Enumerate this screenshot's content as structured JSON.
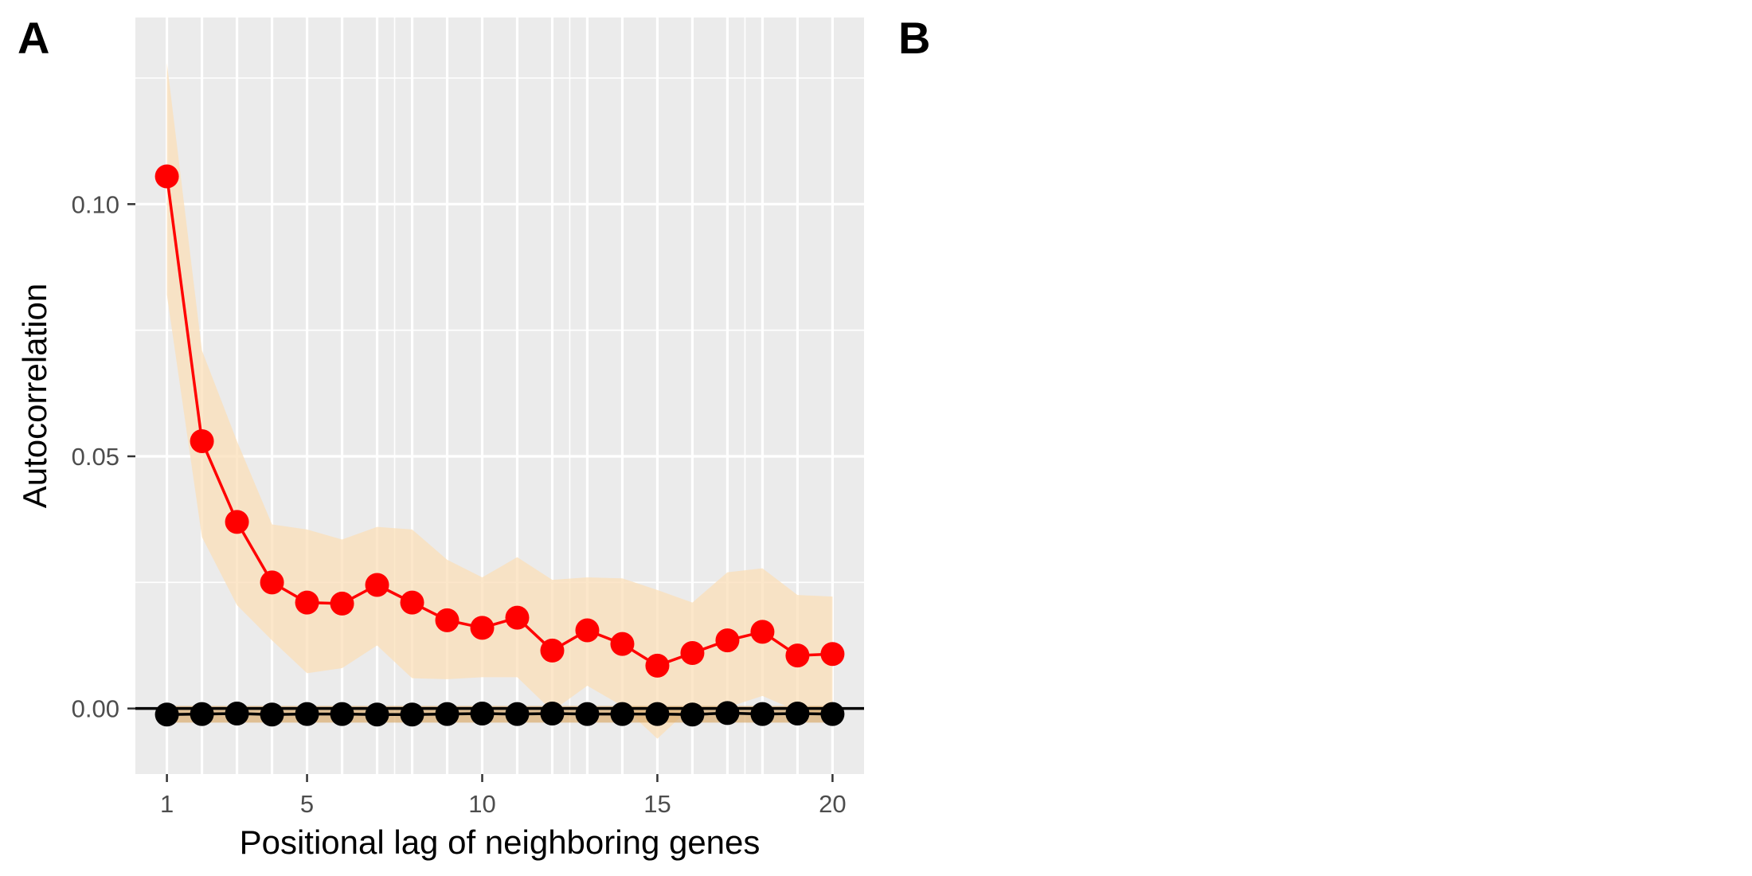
{
  "panels": [
    {
      "label": "A"
    },
    {
      "label": "B"
    }
  ],
  "chart_data": {
    "type": "line",
    "title": "",
    "xlabel": "Positional lag of neighboring genes",
    "ylabel": "Autocorrelation",
    "x": [
      1,
      2,
      3,
      4,
      5,
      6,
      7,
      8,
      9,
      10,
      11,
      12,
      13,
      14,
      15,
      16,
      17,
      18,
      19,
      20
    ],
    "xlim": [
      0.1,
      20.9
    ],
    "ylim": [
      -0.013,
      0.137
    ],
    "x_ticks": [
      1,
      5,
      10,
      15,
      20
    ],
    "x_tick_labels": [
      "1",
      "5",
      "10",
      "15",
      "20"
    ],
    "y_ticks": [
      0.0,
      0.05,
      0.1
    ],
    "y_tick_labels": [
      "0.00",
      "0.05",
      "0.10"
    ],
    "grid": true,
    "legend": "none",
    "reference_line": {
      "y": 0,
      "color": "#000000"
    },
    "series": [
      {
        "color": "#ff0000",
        "ribbon_color": "#fbdfb8",
        "values": [
          0.1055,
          0.053,
          0.037,
          0.025,
          0.021,
          0.0208,
          0.0245,
          0.021,
          0.0175,
          0.016,
          0.018,
          0.0115,
          0.0155,
          0.0128,
          0.0085,
          0.011,
          0.0135,
          0.0152,
          0.0105,
          0.0108
        ],
        "ribbon_upper": [
          0.128,
          0.071,
          0.053,
          0.0365,
          0.0355,
          0.0335,
          0.036,
          0.0355,
          0.0295,
          0.026,
          0.03,
          0.0255,
          0.026,
          0.0258,
          0.0235,
          0.021,
          0.027,
          0.0278,
          0.0225,
          0.0222
        ],
        "ribbon_lower": [
          0.082,
          0.034,
          0.0205,
          0.0135,
          0.007,
          0.008,
          0.0125,
          0.006,
          0.0058,
          0.0062,
          0.0062,
          -0.0005,
          0.0045,
          0.0005,
          -0.006,
          0.0005,
          0.0002,
          0.0025,
          -0.0005,
          -0.001
        ]
      },
      {
        "color": "#000000",
        "ribbon_color": "#d9a765",
        "values": [
          -0.0012,
          -0.0011,
          -0.001,
          -0.0012,
          -0.0011,
          -0.0011,
          -0.0012,
          -0.0012,
          -0.0011,
          -0.001,
          -0.0011,
          -0.001,
          -0.0011,
          -0.0011,
          -0.0011,
          -0.0012,
          -0.0009,
          -0.0011,
          -0.001,
          -0.0011
        ],
        "ribbon_upper": [
          0.0005,
          0.0005,
          0.0005,
          0.0005,
          0.0005,
          0.0005,
          0.0005,
          0.0005,
          0.0005,
          0.0005,
          0.0005,
          0.0005,
          0.0005,
          0.0005,
          0.0005,
          0.0005,
          0.0005,
          0.0005,
          0.0005,
          0.0005
        ],
        "ribbon_lower": [
          -0.0028,
          -0.0028,
          -0.0028,
          -0.0028,
          -0.0028,
          -0.0028,
          -0.0028,
          -0.0028,
          -0.0028,
          -0.0028,
          -0.0028,
          -0.0028,
          -0.0028,
          -0.0028,
          -0.0028,
          -0.0028,
          -0.0028,
          -0.0028,
          -0.0028,
          -0.0028
        ]
      }
    ]
  }
}
